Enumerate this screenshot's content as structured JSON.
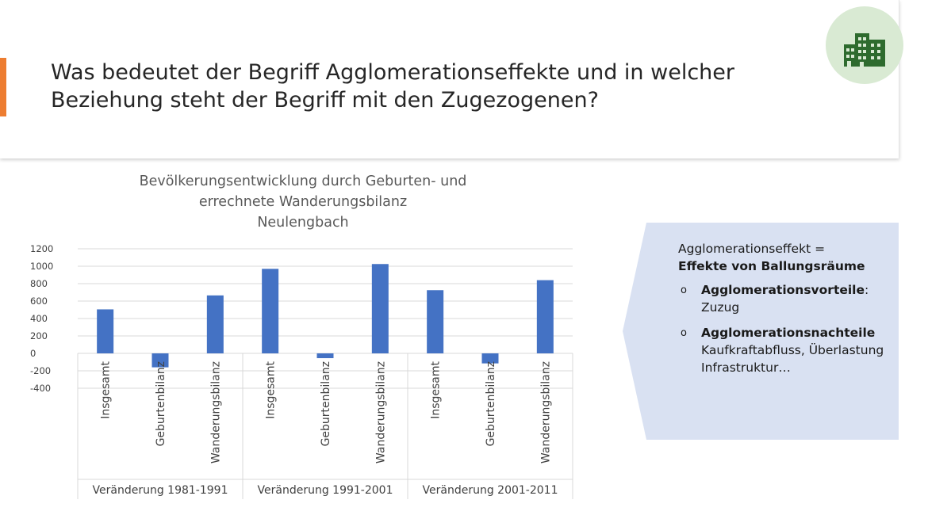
{
  "slide": {
    "title": "Was bedeutet der Begriff Agglomerationseffekte und in welcher Beziehung steht der Begriff mit den Zugezogenen?",
    "accent_color": "#ed7d31",
    "badge_bg_color": "#d9ead3",
    "badge_icon": "buildings-icon",
    "badge_icon_color": "#2e6b2e"
  },
  "callout": {
    "bg_color": "#d9e1f2",
    "line1": "Agglomerationseffekt =",
    "line2": "Effekte von Ballungsräume",
    "items": [
      {
        "bullet": "o",
        "bold": "Agglomerationsvorteile",
        "suffix": ":",
        "text": "Zuzug"
      },
      {
        "bullet": "o",
        "bold": "Agglomerationsnachteile",
        "suffix": "",
        "text": "Kaufkraftabfluss, Überlastung Infrastruktur…"
      }
    ]
  },
  "chart_data": {
    "type": "bar",
    "title": [
      "Bevölkerungsentwicklung durch Geburten- und",
      "errechnete Wanderungsbilanz",
      "Neulengbach"
    ],
    "groups": [
      {
        "label": "Veränderung 1981-1991",
        "categories": [
          "Insgesamt",
          "Geburtenbilanz",
          "Wanderungsbilanz"
        ],
        "values": [
          505,
          -160,
          665
        ]
      },
      {
        "label": "Veränderung 1991-2001",
        "categories": [
          "Insgesamt",
          "Geburtenbilanz",
          "Wanderungsbilanz"
        ],
        "values": [
          970,
          -55,
          1025
        ]
      },
      {
        "label": "Veränderung 2001-2011",
        "categories": [
          "Insgesamt",
          "Geburtenbilanz",
          "Wanderungsbilanz"
        ],
        "values": [
          725,
          -115,
          840
        ]
      }
    ],
    "ylim": [
      -400,
      1200
    ],
    "yticks": [
      -400,
      -200,
      0,
      200,
      400,
      600,
      800,
      1000,
      1200
    ],
    "grid": true,
    "bar_color": "#4472c4"
  }
}
